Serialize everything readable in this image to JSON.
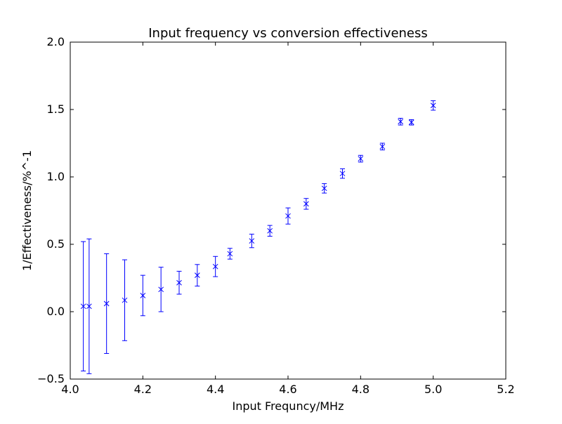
{
  "chart_data": {
    "type": "scatter",
    "title": "Input frequency vs conversion effectiveness",
    "xlabel": "Input Frequncy/MHz",
    "ylabel": "1/Effectiveness/%^-1",
    "xlim": [
      4.0,
      5.2
    ],
    "ylim": [
      -0.5,
      2.0
    ],
    "xticks": [
      "4.0",
      "4.2",
      "4.4",
      "4.6",
      "4.8",
      "5.0",
      "5.2"
    ],
    "yticks": [
      "−0.5",
      "0.0",
      "0.5",
      "1.0",
      "1.5",
      "2.0"
    ],
    "grid": false,
    "marker": "x",
    "color": "#0000ff",
    "series": [
      {
        "x": [
          4.036,
          4.052,
          4.1,
          4.15,
          4.2,
          4.25,
          4.3,
          4.35,
          4.4,
          4.44,
          4.5,
          4.55,
          4.6,
          4.65,
          4.7,
          4.75,
          4.8,
          4.86,
          4.91,
          4.94,
          5.0
        ],
        "y": [
          0.04,
          0.04,
          0.06,
          0.085,
          0.12,
          0.165,
          0.215,
          0.27,
          0.335,
          0.43,
          0.525,
          0.6,
          0.71,
          0.8,
          0.915,
          1.025,
          1.135,
          1.225,
          1.41,
          1.405,
          1.53
        ],
        "yerr": [
          0.48,
          0.5,
          0.37,
          0.3,
          0.15,
          0.165,
          0.085,
          0.08,
          0.075,
          0.04,
          0.05,
          0.04,
          0.06,
          0.04,
          0.035,
          0.035,
          0.025,
          0.025,
          0.025,
          0.02,
          0.035
        ]
      }
    ]
  }
}
